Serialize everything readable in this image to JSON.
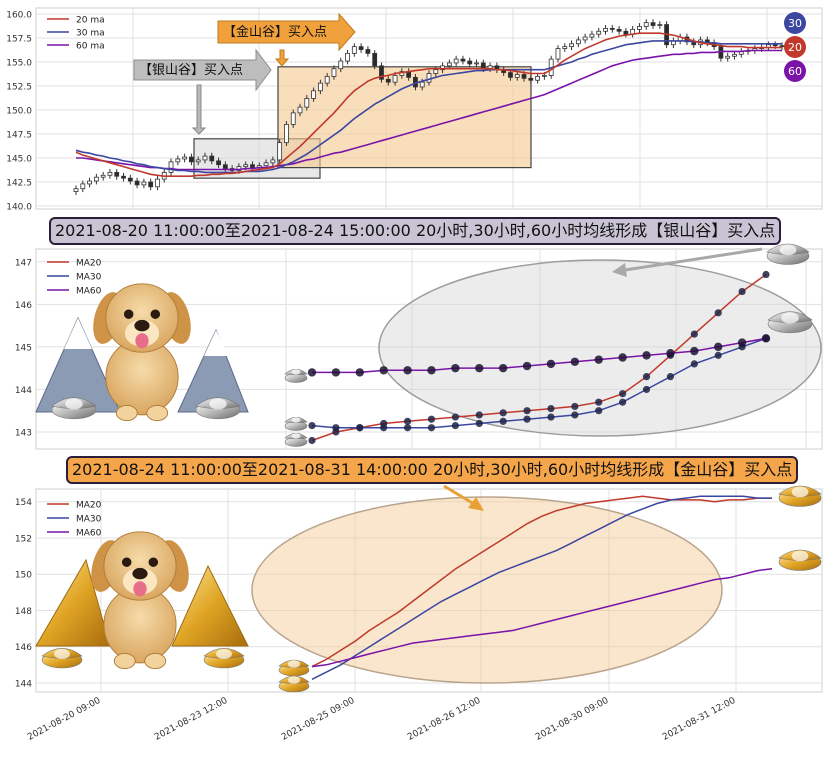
{
  "colors": {
    "ma20": "#c0392b",
    "ma30": "#3b47a0",
    "ma60": "#7a13a8",
    "silver_zone": "#d9d9d9",
    "gold_zone": "#f5c890",
    "banner_silver": "#c9c4d3",
    "banner_gold": "#f6a64a"
  },
  "top": {
    "legend": [
      "20 ma",
      "30 ma",
      "60 ma"
    ],
    "yticks": [
      "160.0",
      "157.5",
      "155.0",
      "152.5",
      "150.0",
      "147.5",
      "145.0",
      "142.5",
      "140.0"
    ],
    "silver_arrow_label": "【银山谷】买入点",
    "gold_arrow_label": "【金山谷】买入点",
    "badges": [
      "30",
      "20",
      "60"
    ]
  },
  "middle": {
    "title": "2021-08-20 11:00:00至2021-08-24 15:00:00 20小时,30小时,60小时均线形成【银山谷】买入点",
    "legend": [
      "MA20",
      "MA30",
      "MA60"
    ],
    "yticks": [
      "147",
      "146",
      "145",
      "144",
      "143"
    ]
  },
  "bottom": {
    "title": "2021-08-24 11:00:00至2021-08-31 14:00:00 20小时,30小时,60小时均线形成【金山谷】买入点",
    "legend": [
      "MA20",
      "MA30",
      "MA60"
    ],
    "yticks": [
      "154",
      "152",
      "150",
      "148",
      "146",
      "144"
    ],
    "xticks": [
      "2021-08-20 09:00",
      "2021-08-23 12:00",
      "2021-08-25 09:00",
      "2021-08-26 12:00",
      "2021-08-30 09:00",
      "2021-08-31 12:00"
    ]
  },
  "chart_data": [
    {
      "type": "candlestick",
      "ylim": [
        140,
        160
      ],
      "legend": "top-left",
      "grid": true,
      "closes": [
        141.8,
        142.3,
        142.6,
        143.0,
        143.2,
        143.5,
        143.1,
        142.9,
        142.6,
        142.2,
        142.5,
        142.0,
        142.8,
        143.5,
        144.6,
        144.9,
        145.1,
        144.6,
        144.8,
        145.2,
        144.7,
        144.3,
        143.9,
        143.7,
        144.1,
        144.3,
        144.0,
        144.2,
        144.5,
        144.8,
        146.6,
        148.5,
        149.7,
        150.3,
        151.2,
        152.0,
        152.8,
        153.5,
        154.3,
        155.1,
        155.9,
        156.6,
        156.3,
        155.9,
        154.6,
        153.2,
        152.9,
        153.6,
        154.0,
        153.4,
        152.4,
        152.9,
        153.8,
        154.2,
        154.6,
        154.9,
        155.3,
        155.1,
        154.8,
        154.9,
        154.3,
        154.6,
        154.2,
        153.9,
        153.4,
        153.7,
        153.3,
        153.1,
        153.5,
        153.6,
        155.3,
        156.4,
        156.6,
        156.9,
        157.3,
        157.6,
        157.9,
        158.2,
        158.5,
        158.4,
        158.2,
        157.9,
        158.4,
        158.7,
        159.1,
        158.8,
        158.9,
        156.8,
        157.2,
        157.6,
        157.1,
        156.8,
        157.3,
        157.0,
        156.6,
        155.4,
        155.6,
        155.8,
        156.1,
        156.2,
        156.4,
        156.5,
        156.8,
        156.7,
        156.6
      ],
      "ma20": [
        145.6,
        145.3,
        145.1,
        144.9,
        144.7,
        144.5,
        144.3,
        144.1,
        143.9,
        143.7,
        143.5,
        143.3,
        143.2,
        143.1,
        143.1,
        143.1,
        143.1,
        143.1,
        143.2,
        143.2,
        143.3,
        143.3,
        143.4,
        143.4,
        143.5,
        143.6,
        143.7,
        143.8,
        143.9,
        144.0,
        144.4,
        145.0,
        145.6,
        146.2,
        146.9,
        147.6,
        148.3,
        149.0,
        149.7,
        150.5,
        151.3,
        152.0,
        152.5,
        153.0,
        153.3,
        153.5,
        153.6,
        153.8,
        153.9,
        154.0,
        154.1,
        154.2,
        154.3,
        154.3,
        154.3,
        154.3,
        154.3,
        154.3,
        154.3,
        154.3,
        154.3,
        154.3,
        154.2,
        154.2,
        154.1,
        154.0,
        153.9,
        153.8,
        153.8,
        153.8,
        154.2,
        154.7,
        155.2,
        155.6,
        156.0,
        156.4,
        156.7,
        157.0,
        157.3,
        157.5,
        157.7,
        157.8,
        157.9,
        158.0,
        158.0,
        158.0,
        158.0,
        157.9,
        157.8,
        157.6,
        157.4,
        157.2,
        157.0,
        156.9,
        156.8,
        156.7,
        156.6,
        156.6,
        156.6,
        156.5,
        156.5,
        156.5,
        156.5,
        156.5,
        156.5
      ],
      "ma30": [
        145.8,
        145.6,
        145.5,
        145.3,
        145.2,
        145.0,
        144.9,
        144.7,
        144.6,
        144.4,
        144.3,
        144.1,
        144.0,
        143.9,
        143.8,
        143.7,
        143.7,
        143.6,
        143.6,
        143.5,
        143.5,
        143.5,
        143.5,
        143.5,
        143.5,
        143.6,
        143.6,
        143.6,
        143.7,
        143.8,
        144.0,
        144.3,
        144.6,
        145.0,
        145.4,
        145.9,
        146.4,
        146.9,
        147.4,
        147.9,
        148.5,
        149.1,
        149.6,
        150.1,
        150.6,
        151.0,
        151.4,
        151.8,
        152.2,
        152.5,
        152.8,
        153.0,
        153.2,
        153.4,
        153.6,
        153.7,
        153.8,
        153.9,
        154.0,
        154.1,
        154.1,
        154.2,
        154.2,
        154.2,
        154.2,
        154.2,
        154.2,
        154.2,
        154.2,
        154.2,
        154.4,
        154.6,
        154.8,
        155.0,
        155.3,
        155.5,
        155.8,
        156.0,
        156.2,
        156.4,
        156.6,
        156.8,
        156.9,
        157.0,
        157.1,
        157.2,
        157.2,
        157.2,
        157.2,
        157.2,
        157.2,
        157.1,
        157.1,
        157.0,
        157.0,
        156.9,
        156.9,
        156.9,
        156.9,
        156.9,
        156.9,
        156.9,
        156.9,
        156.9,
        156.9
      ],
      "ma60": [
        145.0,
        145.0,
        144.9,
        144.8,
        144.7,
        144.6,
        144.5,
        144.4,
        144.3,
        144.2,
        144.1,
        144.0,
        144.0,
        143.9,
        143.9,
        143.8,
        143.8,
        143.8,
        143.8,
        143.8,
        143.8,
        143.8,
        143.8,
        143.8,
        143.8,
        143.9,
        143.9,
        144.0,
        144.0,
        144.1,
        144.2,
        144.3,
        144.4,
        144.6,
        144.8,
        144.9,
        145.1,
        145.3,
        145.5,
        145.6,
        145.8,
        146.0,
        146.2,
        146.4,
        146.6,
        146.8,
        147.0,
        147.2,
        147.4,
        147.6,
        147.8,
        148.0,
        148.2,
        148.4,
        148.6,
        148.8,
        149.0,
        149.2,
        149.4,
        149.6,
        149.8,
        150.0,
        150.2,
        150.4,
        150.6,
        150.8,
        151.0,
        151.2,
        151.4,
        151.6,
        151.9,
        152.2,
        152.5,
        152.8,
        153.1,
        153.4,
        153.7,
        154.0,
        154.3,
        154.6,
        154.8,
        155.0,
        155.2,
        155.3,
        155.4,
        155.5,
        155.6,
        155.7,
        155.8,
        155.8,
        155.9,
        155.9,
        156.0,
        156.0,
        156.0,
        156.1,
        156.1,
        156.1,
        156.1,
        156.2,
        156.2,
        156.2,
        156.2,
        156.2,
        156.2
      ]
    },
    {
      "type": "line",
      "ylim": [
        142.6,
        147.3
      ],
      "legend": "top-left",
      "grid": true,
      "series": [
        {
          "name": "MA20",
          "values": [
            142.8,
            143.0,
            143.1,
            143.2,
            143.25,
            143.3,
            143.35,
            143.4,
            143.45,
            143.5,
            143.55,
            143.6,
            143.7,
            143.9,
            144.3,
            144.8,
            145.3,
            145.8,
            146.3,
            146.7
          ]
        },
        {
          "name": "MA30",
          "values": [
            143.15,
            143.1,
            143.1,
            143.1,
            143.1,
            143.1,
            143.15,
            143.2,
            143.25,
            143.3,
            143.35,
            143.4,
            143.5,
            143.7,
            144.0,
            144.3,
            144.6,
            144.8,
            145.0,
            145.2
          ]
        },
        {
          "name": "MA60",
          "values": [
            144.4,
            144.4,
            144.4,
            144.45,
            144.45,
            144.45,
            144.5,
            144.5,
            144.5,
            144.55,
            144.6,
            144.65,
            144.7,
            144.75,
            144.8,
            144.85,
            144.9,
            145.0,
            145.1,
            145.2
          ]
        }
      ]
    },
    {
      "type": "line",
      "ylim": [
        143.5,
        154.7
      ],
      "legend": "top-left",
      "grid": true,
      "x_labels": [
        "2021-08-20 09:00",
        "2021-08-23 12:00",
        "2021-08-25 09:00",
        "2021-08-26 12:00",
        "2021-08-30 09:00",
        "2021-08-31 12:00"
      ],
      "series": [
        {
          "name": "MA20",
          "values": [
            144.9,
            145.3,
            145.8,
            146.3,
            146.9,
            147.4,
            147.9,
            148.5,
            149.1,
            149.7,
            150.3,
            150.8,
            151.3,
            151.8,
            152.3,
            152.8,
            153.2,
            153.5,
            153.7,
            153.9,
            154.0,
            154.1,
            154.2,
            154.3,
            154.2,
            154.1,
            154.1,
            154.1,
            154.0,
            154.1,
            154.1,
            154.2,
            154.2
          ]
        },
        {
          "name": "MA30",
          "values": [
            144.2,
            144.6,
            145.0,
            145.5,
            146.0,
            146.5,
            147.0,
            147.5,
            148.0,
            148.5,
            148.9,
            149.3,
            149.7,
            150.1,
            150.4,
            150.7,
            151.0,
            151.3,
            151.7,
            152.1,
            152.5,
            152.9,
            153.3,
            153.6,
            153.9,
            154.1,
            154.2,
            154.3,
            154.3,
            154.3,
            154.3,
            154.2,
            154.2
          ]
        },
        {
          "name": "MA60",
          "values": [
            144.9,
            145.0,
            145.2,
            145.4,
            145.6,
            145.8,
            146.0,
            146.2,
            146.3,
            146.4,
            146.5,
            146.6,
            146.7,
            146.8,
            146.9,
            147.1,
            147.3,
            147.5,
            147.7,
            147.9,
            148.1,
            148.3,
            148.5,
            148.7,
            148.9,
            149.1,
            149.3,
            149.5,
            149.7,
            149.8,
            150.0,
            150.2,
            150.3
          ]
        }
      ]
    }
  ]
}
